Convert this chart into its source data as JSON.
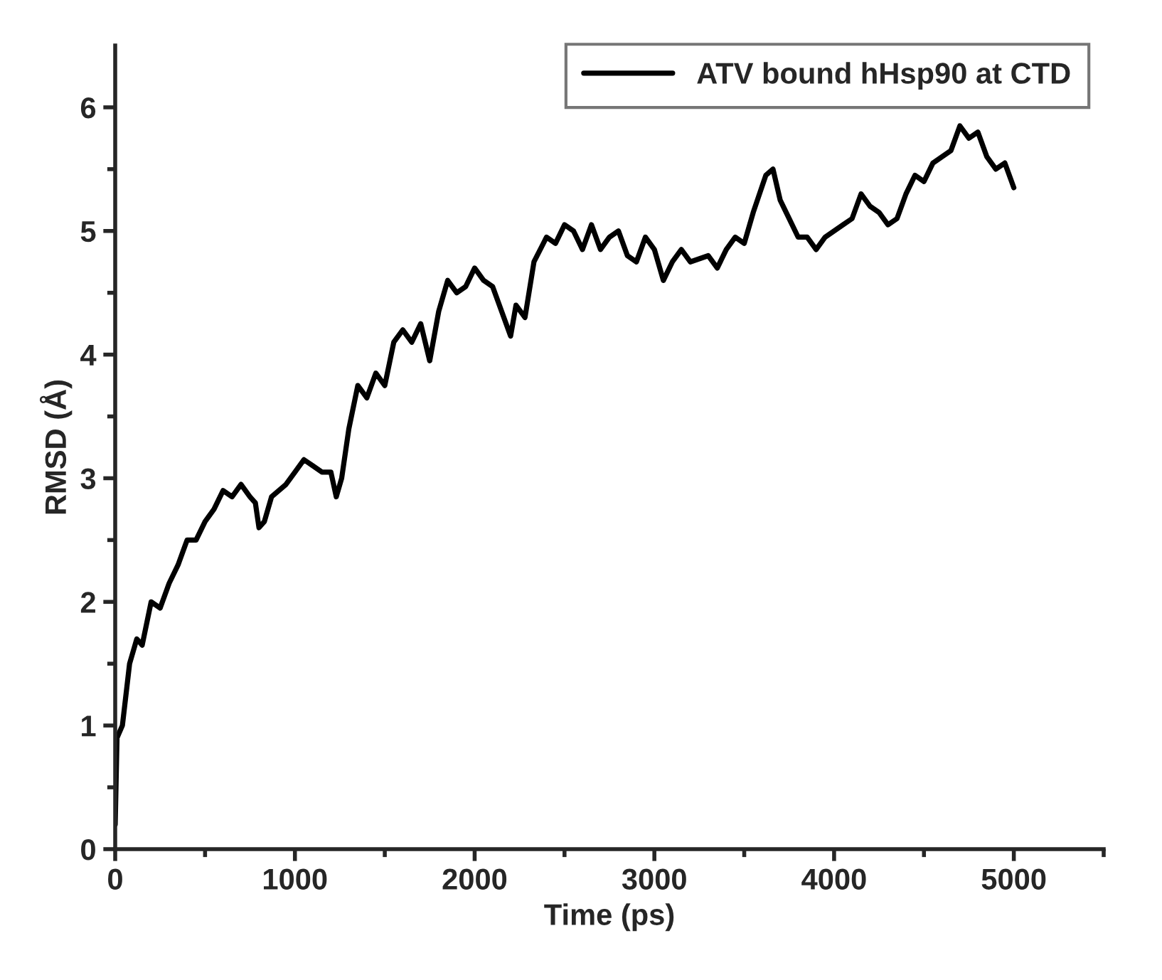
{
  "chart_data": {
    "type": "line",
    "xlabel": "Time (ps)",
    "ylabel": "RMSD (Å)",
    "xlim": [
      0,
      5500
    ],
    "xticks": [
      0,
      {
        "value": 500,
        "label": null
      },
      1000,
      {
        "value": 1500,
        "label": null
      },
      2000,
      {
        "value": 2500,
        "label": null
      },
      3000,
      {
        "value": 3500,
        "label": null
      },
      4000,
      {
        "value": 4500,
        "label": null
      },
      5000,
      {
        "value": 5500,
        "label": null
      }
    ],
    "ylim": [
      0,
      6.5
    ],
    "yticks": [
      0,
      {
        "value": 0.5,
        "label": null
      },
      1,
      {
        "value": 1.5,
        "label": null
      },
      2,
      {
        "value": 2.5,
        "label": null
      },
      3,
      {
        "value": 3.5,
        "label": null
      },
      4,
      {
        "value": 4.5,
        "label": null
      },
      5,
      {
        "value": 5.5,
        "label": null
      },
      6
    ],
    "grid": false,
    "legend": "top right",
    "marker": "none",
    "line_style": "solid",
    "series": [
      {
        "name": "ATV bound hHsp90 at CTD",
        "color": "#000000",
        "x": [
          0,
          10,
          40,
          80,
          120,
          150,
          200,
          250,
          300,
          350,
          400,
          450,
          500,
          550,
          600,
          650,
          700,
          750,
          780,
          800,
          830,
          870,
          950,
          1000,
          1050,
          1100,
          1150,
          1200,
          1230,
          1260,
          1300,
          1350,
          1400,
          1450,
          1500,
          1550,
          1600,
          1650,
          1700,
          1750,
          1800,
          1850,
          1900,
          1950,
          2000,
          2050,
          2100,
          2150,
          2200,
          2230,
          2280,
          2330,
          2400,
          2450,
          2500,
          2550,
          2600,
          2650,
          2700,
          2750,
          2800,
          2850,
          2900,
          2950,
          3000,
          3050,
          3100,
          3150,
          3200,
          3300,
          3350,
          3400,
          3450,
          3500,
          3550,
          3620,
          3660,
          3700,
          3750,
          3800,
          3850,
          3900,
          3950,
          4000,
          4050,
          4100,
          4150,
          4200,
          4250,
          4300,
          4350,
          4400,
          4450,
          4500,
          4550,
          4600,
          4650,
          4700,
          4750,
          4800,
          4850,
          4900,
          4950,
          5000
        ],
        "values": [
          0.2,
          0.9,
          1.0,
          1.5,
          1.7,
          1.65,
          2.0,
          1.95,
          2.15,
          2.3,
          2.5,
          2.5,
          2.65,
          2.75,
          2.9,
          2.85,
          2.95,
          2.85,
          2.8,
          2.6,
          2.65,
          2.85,
          2.95,
          3.05,
          3.15,
          3.1,
          3.05,
          3.05,
          2.85,
          3.0,
          3.4,
          3.75,
          3.65,
          3.85,
          3.75,
          4.1,
          4.2,
          4.1,
          4.25,
          3.95,
          4.35,
          4.6,
          4.5,
          4.55,
          4.7,
          4.6,
          4.55,
          4.35,
          4.15,
          4.4,
          4.3,
          4.75,
          4.95,
          4.9,
          5.05,
          5.0,
          4.85,
          5.05,
          4.85,
          4.95,
          5.0,
          4.8,
          4.75,
          4.95,
          4.85,
          4.6,
          4.75,
          4.85,
          4.75,
          4.8,
          4.7,
          4.85,
          4.95,
          4.9,
          5.15,
          5.45,
          5.5,
          5.25,
          5.1,
          4.95,
          4.95,
          4.85,
          4.95,
          5.0,
          5.05,
          5.1,
          5.3,
          5.2,
          5.15,
          5.05,
          5.1,
          5.3,
          5.45,
          5.4,
          5.55,
          5.6,
          5.65,
          5.85,
          5.75,
          5.8,
          5.6,
          5.5,
          5.55,
          5.35
        ]
      }
    ]
  }
}
